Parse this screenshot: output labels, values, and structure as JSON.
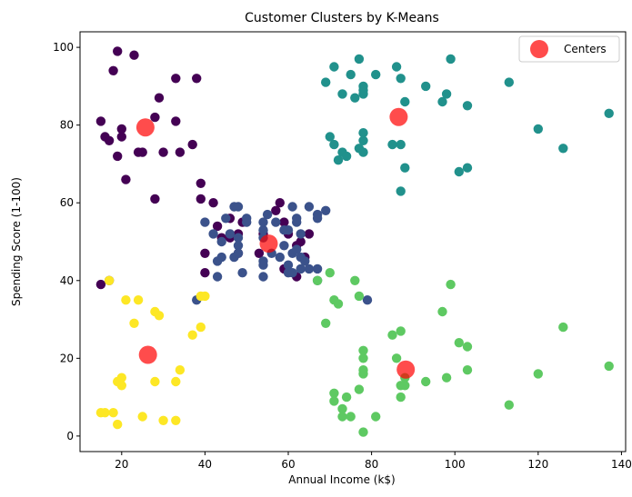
{
  "chart_data": {
    "type": "scatter",
    "title": "Customer Clusters by K-Means",
    "xlabel": "Annual Income (k$)",
    "ylabel": "Spending Score (1-100)",
    "xlim": [
      10,
      141
    ],
    "ylim": [
      -4,
      104
    ],
    "xticks": [
      20,
      40,
      60,
      80,
      100,
      120,
      140
    ],
    "yticks": [
      0,
      20,
      40,
      60,
      80,
      100
    ],
    "grid": false,
    "legend_position": "top-right",
    "colors": {
      "cluster_0": "#440154",
      "cluster_1": "#3b528b",
      "cluster_2": "#21918c",
      "cluster_3": "#5ec962",
      "cluster_4": "#fde725",
      "centers": "#ff0000"
    },
    "series": [
      {
        "cluster": 0,
        "color_key": "cluster_0",
        "points": [
          [
            15,
            81
          ],
          [
            16,
            77
          ],
          [
            17,
            76
          ],
          [
            18,
            94
          ],
          [
            19,
            99
          ],
          [
            19,
            72
          ],
          [
            20,
            77
          ],
          [
            20,
            79
          ],
          [
            21,
            66
          ],
          [
            23,
            98
          ],
          [
            24,
            73
          ],
          [
            25,
            73
          ],
          [
            28,
            82
          ],
          [
            28,
            61
          ],
          [
            29,
            87
          ],
          [
            30,
            73
          ],
          [
            33,
            92
          ],
          [
            33,
            81
          ],
          [
            34,
            73
          ],
          [
            37,
            75
          ],
          [
            38,
            92
          ],
          [
            39,
            65
          ],
          [
            39,
            61
          ],
          [
            40,
            47
          ],
          [
            40,
            42
          ],
          [
            42,
            60
          ],
          [
            43,
            54
          ],
          [
            46,
            56
          ],
          [
            46,
            51
          ],
          [
            48,
            52
          ],
          [
            49,
            55
          ],
          [
            54,
            52
          ],
          [
            57,
            58
          ],
          [
            58,
            60
          ],
          [
            59,
            55
          ],
          [
            60,
            52
          ],
          [
            62,
            49
          ],
          [
            63,
            50
          ],
          [
            65,
            52
          ],
          [
            15,
            39
          ],
          [
            17,
            40
          ],
          [
            44,
            51
          ],
          [
            48,
            47
          ],
          [
            53,
            47
          ],
          [
            59,
            43
          ],
          [
            62,
            41
          ],
          [
            64,
            46
          ]
        ]
      },
      {
        "cluster": 1,
        "color_key": "cluster_1",
        "points": [
          [
            38,
            35
          ],
          [
            40,
            55
          ],
          [
            42,
            52
          ],
          [
            43,
            45
          ],
          [
            43,
            41
          ],
          [
            44,
            46
          ],
          [
            44,
            50
          ],
          [
            45,
            56
          ],
          [
            46,
            52
          ],
          [
            47,
            59
          ],
          [
            47,
            46
          ],
          [
            48,
            51
          ],
          [
            48,
            49
          ],
          [
            48,
            59
          ],
          [
            48,
            47
          ],
          [
            49,
            42
          ],
          [
            50,
            55
          ],
          [
            50,
            56
          ],
          [
            54,
            51
          ],
          [
            54,
            45
          ],
          [
            54,
            41
          ],
          [
            54,
            53
          ],
          [
            54,
            44
          ],
          [
            55,
            57
          ],
          [
            56,
            47
          ],
          [
            57,
            55
          ],
          [
            58,
            46
          ],
          [
            59,
            53
          ],
          [
            59,
            49
          ],
          [
            60,
            42
          ],
          [
            60,
            44
          ],
          [
            60,
            53
          ],
          [
            61,
            42
          ],
          [
            61,
            47
          ],
          [
            61,
            59
          ],
          [
            62,
            48
          ],
          [
            62,
            55
          ],
          [
            62,
            56
          ],
          [
            63,
            52
          ],
          [
            63,
            43
          ],
          [
            64,
            45
          ],
          [
            65,
            59
          ],
          [
            65,
            43
          ],
          [
            67,
            57
          ],
          [
            67,
            56
          ],
          [
            67,
            43
          ],
          [
            67,
            40
          ],
          [
            69,
            58
          ],
          [
            79,
            35
          ],
          [
            54,
            55
          ],
          [
            63,
            46
          ]
        ]
      },
      {
        "cluster": 2,
        "color_key": "cluster_2",
        "points": [
          [
            69,
            91
          ],
          [
            70,
            77
          ],
          [
            71,
            95
          ],
          [
            71,
            75
          ],
          [
            72,
            71
          ],
          [
            73,
            88
          ],
          [
            73,
            73
          ],
          [
            74,
            72
          ],
          [
            75,
            93
          ],
          [
            76,
            87
          ],
          [
            77,
            97
          ],
          [
            77,
            74
          ],
          [
            78,
            90
          ],
          [
            78,
            88
          ],
          [
            78,
            76
          ],
          [
            78,
            89
          ],
          [
            78,
            78
          ],
          [
            78,
            73
          ],
          [
            81,
            93
          ],
          [
            85,
            75
          ],
          [
            86,
            95
          ],
          [
            87,
            63
          ],
          [
            87,
            75
          ],
          [
            87,
            92
          ],
          [
            88,
            86
          ],
          [
            88,
            69
          ],
          [
            93,
            90
          ],
          [
            97,
            86
          ],
          [
            98,
            88
          ],
          [
            99,
            97
          ],
          [
            101,
            68
          ],
          [
            103,
            85
          ],
          [
            103,
            69
          ],
          [
            113,
            91
          ],
          [
            120,
            79
          ],
          [
            126,
            74
          ],
          [
            137,
            83
          ]
        ]
      },
      {
        "cluster": 3,
        "color_key": "cluster_3",
        "points": [
          [
            69,
            29
          ],
          [
            70,
            42
          ],
          [
            71,
            35
          ],
          [
            71,
            11
          ],
          [
            71,
            9
          ],
          [
            72,
            34
          ],
          [
            73,
            5
          ],
          [
            73,
            7
          ],
          [
            74,
            10
          ],
          [
            75,
            5
          ],
          [
            76,
            40
          ],
          [
            77,
            12
          ],
          [
            77,
            36
          ],
          [
            78,
            22
          ],
          [
            78,
            17
          ],
          [
            78,
            20
          ],
          [
            78,
            16
          ],
          [
            78,
            1
          ],
          [
            81,
            5
          ],
          [
            85,
            26
          ],
          [
            86,
            20
          ],
          [
            87,
            27
          ],
          [
            87,
            13
          ],
          [
            87,
            10
          ],
          [
            88,
            13
          ],
          [
            88,
            15
          ],
          [
            93,
            14
          ],
          [
            97,
            32
          ],
          [
            98,
            15
          ],
          [
            99,
            39
          ],
          [
            101,
            24
          ],
          [
            103,
            17
          ],
          [
            103,
            23
          ],
          [
            113,
            8
          ],
          [
            120,
            16
          ],
          [
            126,
            28
          ],
          [
            137,
            18
          ],
          [
            67,
            40
          ]
        ]
      },
      {
        "cluster": 4,
        "color_key": "cluster_4",
        "points": [
          [
            15,
            6
          ],
          [
            16,
            6
          ],
          [
            17,
            40
          ],
          [
            18,
            6
          ],
          [
            19,
            3
          ],
          [
            19,
            14
          ],
          [
            20,
            15
          ],
          [
            20,
            13
          ],
          [
            21,
            35
          ],
          [
            23,
            29
          ],
          [
            24,
            35
          ],
          [
            25,
            5
          ],
          [
            28,
            14
          ],
          [
            28,
            32
          ],
          [
            29,
            31
          ],
          [
            30,
            4
          ],
          [
            33,
            4
          ],
          [
            33,
            14
          ],
          [
            34,
            17
          ],
          [
            37,
            26
          ],
          [
            39,
            36
          ],
          [
            39,
            28
          ],
          [
            40,
            36
          ]
        ]
      }
    ],
    "centers": {
      "name": "Centers",
      "points": [
        [
          86.5,
          82.1
        ],
        [
          26.3,
          20.9
        ],
        [
          55.3,
          49.5
        ],
        [
          25.7,
          79.4
        ],
        [
          88.2,
          17.1
        ]
      ]
    }
  }
}
